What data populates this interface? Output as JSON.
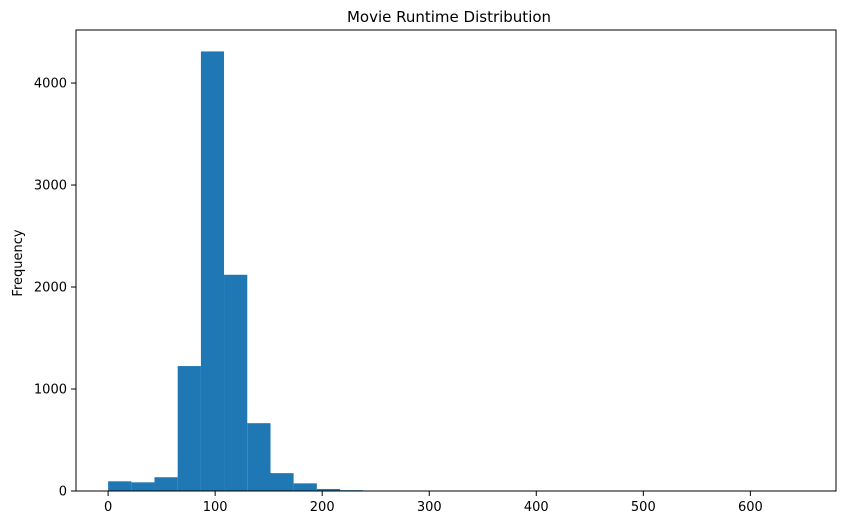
{
  "chart_data": {
    "type": "bar",
    "title": "Movie Runtime Distribution",
    "xlabel": "",
    "ylabel": "Frequency",
    "xlim": [
      -30,
      680
    ],
    "ylim": [
      0,
      4520
    ],
    "bin_edges": [
      0,
      21.7,
      43.3,
      65.0,
      86.7,
      108.3,
      130.0,
      151.7,
      173.3,
      195.0,
      216.7,
      238.3,
      260.0,
      281.7,
      303.3,
      325.0,
      346.7,
      368.3,
      390.0,
      411.7,
      433.3,
      455.0,
      476.7,
      498.3,
      520.0,
      541.7,
      563.3,
      585.0,
      606.7,
      628.3,
      650.0
    ],
    "values": [
      95,
      85,
      135,
      1225,
      4310,
      2120,
      665,
      175,
      75,
      20,
      8,
      3,
      2,
      1,
      1,
      0,
      0,
      0,
      0,
      0,
      0,
      0,
      0,
      0,
      0,
      0,
      0,
      0,
      0,
      1
    ],
    "x_ticks": [
      0,
      100,
      200,
      300,
      400,
      500,
      600
    ],
    "y_ticks": [
      0,
      1000,
      2000,
      3000,
      4000
    ],
    "bar_color": "#1f77b4",
    "grid": false,
    "legend": "none"
  }
}
